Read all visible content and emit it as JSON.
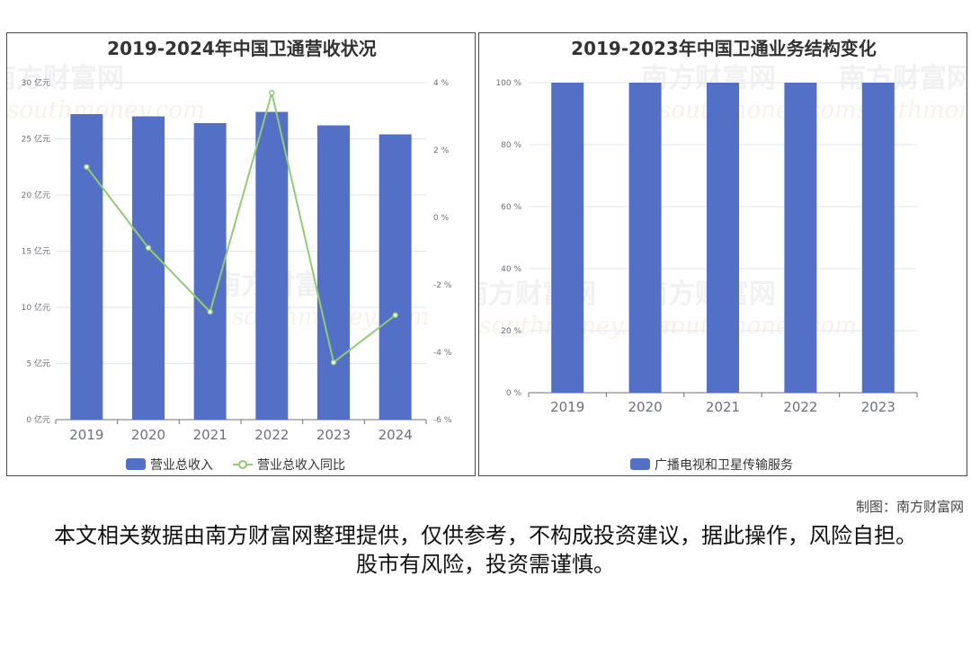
{
  "credit": "制图：南方财富网",
  "disclaimer": "本文相关数据由南方财富网整理提供，仅供参考，不构成投资建议，据此操作，风险自担。股市有风险，投资需谨慎。",
  "watermark": {
    "cn": "南方财富网",
    "en": "southmoney.com"
  },
  "colors": {
    "bar": "#5470c6",
    "line": "#91cc75",
    "axis": "#6e7079",
    "grid": "#e0e6f1"
  },
  "chart_data": [
    {
      "type": "bar",
      "title": "2019-2024年中国卫通营收状况",
      "categories": [
        "2019",
        "2020",
        "2021",
        "2022",
        "2023",
        "2024"
      ],
      "series": [
        {
          "name": "营业总收入",
          "type": "bar",
          "axis": "left",
          "values": [
            27.2,
            27.0,
            26.4,
            27.4,
            26.2,
            25.4
          ]
        },
        {
          "name": "营业总收入同比",
          "type": "line",
          "axis": "right",
          "values": [
            1.5,
            -0.9,
            -2.8,
            3.7,
            -4.3,
            -2.9
          ]
        }
      ],
      "y_left": {
        "ticks": [
          "0 亿元",
          "5 亿元",
          "10 亿元",
          "15 亿元",
          "20 亿元",
          "25 亿元",
          "30 亿元"
        ],
        "range": [
          0,
          30
        ]
      },
      "y_right": {
        "ticks": [
          "-6 %",
          "-4 %",
          "-2 %",
          "0 %",
          "2 %",
          "4 %"
        ],
        "range": [
          -6,
          4
        ]
      },
      "legend_position": "bottom",
      "grid": true
    },
    {
      "type": "bar",
      "title": "2019-2023年中国卫通业务结构变化",
      "categories": [
        "2019",
        "2020",
        "2021",
        "2022",
        "2023"
      ],
      "series": [
        {
          "name": "广播电视和卫星传输服务",
          "values": [
            100,
            100,
            100,
            100,
            100
          ]
        }
      ],
      "y_axis": {
        "ticks": [
          "0 %",
          "20 %",
          "40 %",
          "60 %",
          "80 %",
          "100 %"
        ],
        "range": [
          0,
          100
        ]
      },
      "legend_position": "bottom",
      "grid": true
    }
  ]
}
